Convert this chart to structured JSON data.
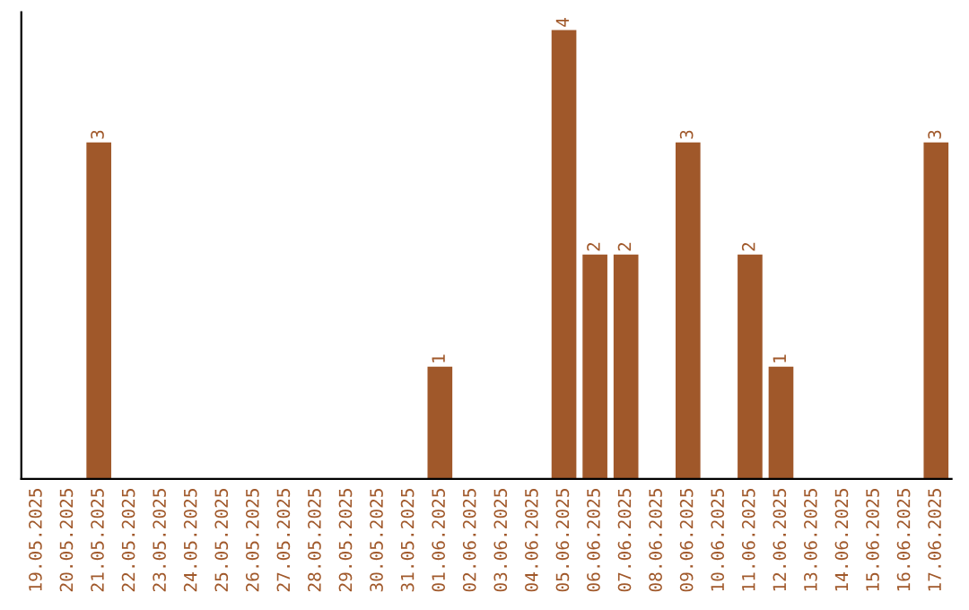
{
  "chart_data": {
    "type": "bar",
    "categories": [
      "19.05.2025",
      "20.05.2025",
      "21.05.2025",
      "22.05.2025",
      "23.05.2025",
      "24.05.2025",
      "25.05.2025",
      "26.05.2025",
      "27.05.2025",
      "28.05.2025",
      "29.05.2025",
      "30.05.2025",
      "31.05.2025",
      "01.06.2025",
      "02.06.2025",
      "03.06.2025",
      "04.06.2025",
      "05.06.2025",
      "06.06.2025",
      "07.06.2025",
      "08.06.2025",
      "09.06.2025",
      "10.06.2025",
      "11.06.2025",
      "12.06.2025",
      "13.06.2025",
      "14.06.2025",
      "15.06.2025",
      "16.06.2025",
      "17.06.2025"
    ],
    "values": [
      0,
      0,
      3,
      0,
      0,
      0,
      0,
      0,
      0,
      0,
      0,
      0,
      0,
      1,
      0,
      0,
      0,
      4,
      2,
      2,
      0,
      3,
      0,
      2,
      1,
      0,
      0,
      0,
      0,
      3
    ],
    "color": "#a0582a",
    "value_labels": [
      null,
      null,
      "3",
      null,
      null,
      null,
      null,
      null,
      null,
      null,
      null,
      null,
      null,
      "1",
      null,
      null,
      null,
      "4",
      "2",
      "2",
      null,
      "3",
      null,
      "2",
      "1",
      null,
      null,
      null,
      null,
      "3"
    ],
    "tick_labels": "x",
    "grid": false,
    "legend": false
  }
}
